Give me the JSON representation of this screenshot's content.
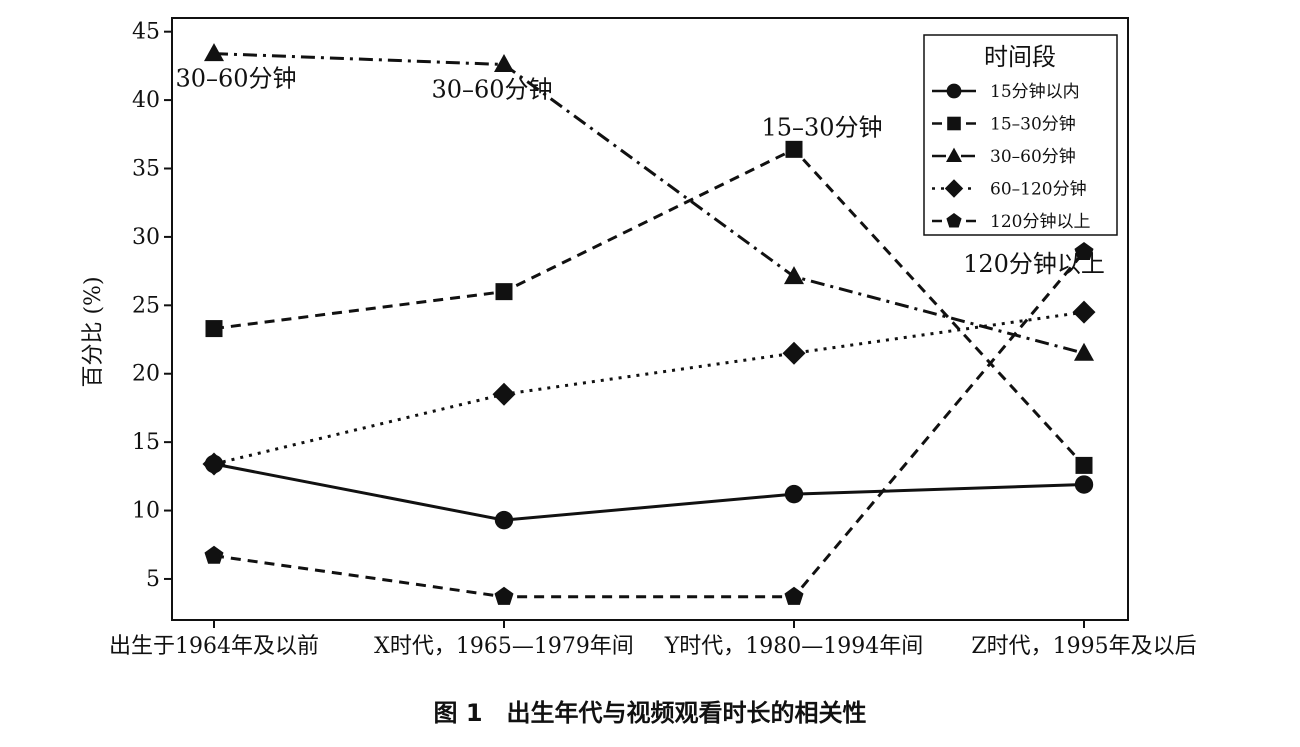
{
  "caption": "图 1　出生年代与视频观看时长的相关性",
  "chart_data": {
    "type": "line",
    "ylabel": "百分比 (%)",
    "xlabel": "",
    "ylim": [
      2,
      46
    ],
    "yticks": [
      5,
      10,
      15,
      20,
      25,
      30,
      35,
      40,
      45
    ],
    "grid": false,
    "legend_position": "top-right",
    "legend_title": "时间段",
    "categories": [
      "出生于1964年及以前",
      "X时代，1965—1979年间",
      "Y时代，1980—1994年间",
      "Z时代，1995年及以后"
    ],
    "series": [
      {
        "name": "15分钟以内",
        "values": [
          13.4,
          9.3,
          11.2,
          11.9
        ],
        "marker": "circle",
        "dash": "solid"
      },
      {
        "name": "15–30分钟",
        "values": [
          23.3,
          26.0,
          36.4,
          13.3
        ],
        "marker": "square",
        "dash": "dashed"
      },
      {
        "name": "30–60分钟",
        "values": [
          43.4,
          42.6,
          27.1,
          21.5
        ],
        "marker": "triangle",
        "dash": "dashdot"
      },
      {
        "name": "60–120分钟",
        "values": [
          13.4,
          18.5,
          21.5,
          24.5
        ],
        "marker": "diamond",
        "dash": "dotted"
      },
      {
        "name": "120分钟以上",
        "values": [
          6.7,
          3.7,
          3.7,
          28.9
        ],
        "marker": "pentagon",
        "dash": "dashed"
      }
    ],
    "annotations": [
      {
        "text": "30–60分钟",
        "series": 2,
        "index": 0
      },
      {
        "text": "30–60分钟",
        "series": 2,
        "index": 1
      },
      {
        "text": "15–30分钟",
        "series": 1,
        "index": 2
      },
      {
        "text": "120分钟以上",
        "series": 4,
        "index": 3
      }
    ]
  }
}
